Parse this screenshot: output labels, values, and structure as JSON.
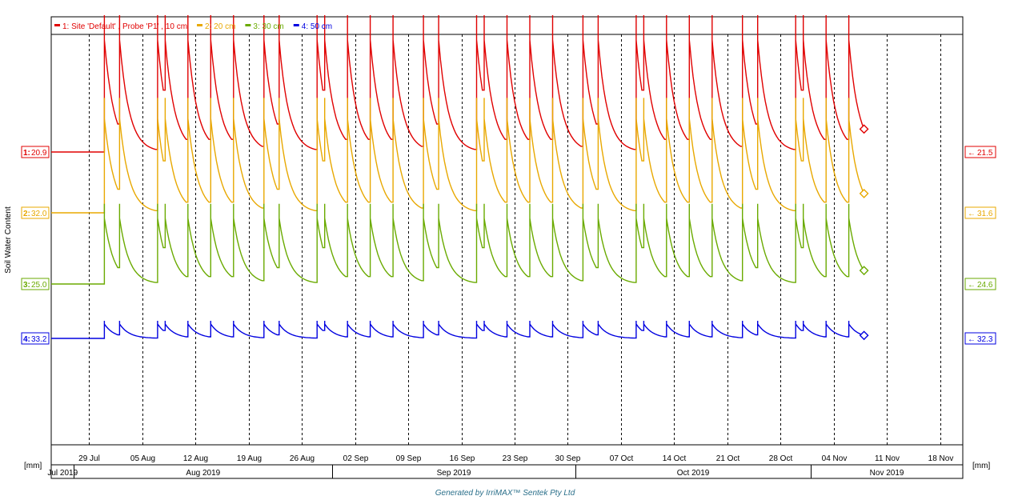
{
  "colors": {
    "s1": "#e00000",
    "s2": "#e8a800",
    "s3": "#6aaa00",
    "s4": "#0000e0",
    "grid": "#000000",
    "footer": "#2a6f8a"
  },
  "footer": {
    "text": "Generated by IrriMAX™ Sentek Pty Ltd"
  },
  "chart_data": {
    "type": "line",
    "ylabel": "Soil Water Content",
    "unit_left": "[mm]",
    "unit_right": "[mm]",
    "legend_position": "top-left",
    "x_start": "2019-07-24",
    "x_end": "2019-11-21",
    "tick_dates": [
      "2019-07-29",
      "2019-08-05",
      "2019-08-12",
      "2019-08-19",
      "2019-08-26",
      "2019-09-02",
      "2019-09-09",
      "2019-09-16",
      "2019-09-23",
      "2019-09-30",
      "2019-10-07",
      "2019-10-14",
      "2019-10-21",
      "2019-10-28",
      "2019-11-04",
      "2019-11-11",
      "2019-11-18"
    ],
    "tick_labels": [
      "29 Jul",
      "05 Aug",
      "12 Aug",
      "19 Aug",
      "26 Aug",
      "02 Sep",
      "09 Sep",
      "16 Sep",
      "23 Sep",
      "30 Sep",
      "07 Oct",
      "14 Oct",
      "21 Oct",
      "28 Oct",
      "04 Nov",
      "11 Nov",
      "18 Nov"
    ],
    "months": [
      {
        "label": "Jul 2019",
        "start": "2019-07-24",
        "end": "2019-07-27"
      },
      {
        "label": "Aug 2019",
        "start": "2019-07-27",
        "end": "2019-08-30"
      },
      {
        "label": "Sep 2019",
        "start": "2019-08-30",
        "end": "2019-10-01"
      },
      {
        "label": "Oct 2019",
        "start": "2019-10-01",
        "end": "2019-11-01"
      },
      {
        "label": "Nov 2019",
        "start": "2019-11-01",
        "end": "2019-11-21"
      }
    ],
    "event_dates": [
      "2019-07-31",
      "2019-08-07",
      "2019-08-14",
      "2019-08-21",
      "2019-08-28",
      "2019-09-04",
      "2019-09-11",
      "2019-09-18",
      "2019-09-25",
      "2019-10-02",
      "2019-10-09",
      "2019-10-16",
      "2019-10-23",
      "2019-10-30",
      "2019-11-06"
    ],
    "series": [
      {
        "name": "1: Site 'Default' , Probe 'P1' , 10 cm",
        "badge": "1:",
        "left_value": "20.9",
        "right_value": "21.5",
        "base": 20.9,
        "amp": 7.5
      },
      {
        "name": "2: 20 cm",
        "badge": "2:",
        "left_value": "32.0",
        "right_value": "31.6",
        "base": 32.0,
        "amp": 6.3
      },
      {
        "name": "3: 30 cm",
        "badge": "3:",
        "left_value": "25.0",
        "right_value": "24.6",
        "base": 25.0,
        "amp": 4.4
      },
      {
        "name": "4: 50 cm",
        "badge": "4:",
        "left_value": "33.2",
        "right_value": "32.3",
        "base": 33.2,
        "amp": 2.2
      }
    ],
    "end_date": "2019-11-08"
  }
}
